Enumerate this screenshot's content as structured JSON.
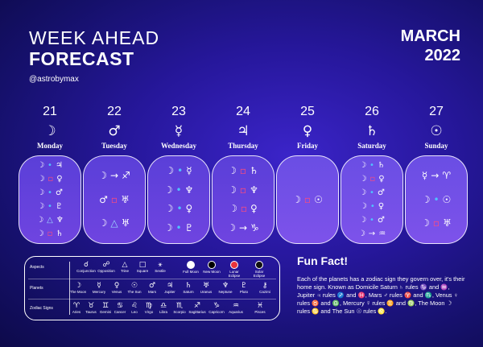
{
  "header": {
    "title_line1": "WEEK AHEAD",
    "title_line2": "FORECAST",
    "handle": "@astrobymax",
    "month": "MARCH",
    "year": "2022"
  },
  "days": [
    {
      "num": "21",
      "symbol": "☽",
      "name": "Monday",
      "style": "normal",
      "rows": [
        [
          "☽",
          "•",
          "♃"
        ],
        [
          "☽",
          "▫",
          "♀"
        ],
        [
          "☽",
          "•",
          "♂"
        ],
        [
          "☽",
          "•",
          "♇"
        ],
        [
          "☽",
          "△",
          "♆"
        ],
        [
          "☽",
          "▫",
          "♄"
        ]
      ]
    },
    {
      "num": "22",
      "symbol": "♂",
      "name": "Tuesday",
      "style": "normal",
      "rows": [
        [
          "☽",
          "→",
          "♐"
        ],
        [
          "♂",
          "▫",
          "♅"
        ],
        [
          "☽",
          "△",
          "♅"
        ]
      ]
    },
    {
      "num": "23",
      "symbol": "☿",
      "name": "Wednesday",
      "style": "normal",
      "rows": [
        [
          "☽",
          "•",
          "☿"
        ],
        [
          "☽",
          "•",
          "♆"
        ],
        [
          "☽",
          "•",
          "♀"
        ],
        [
          "☽",
          "•",
          "♇"
        ]
      ]
    },
    {
      "num": "24",
      "symbol": "♃",
      "name": "Thursday",
      "style": "normal",
      "rows": [
        [
          "☽",
          "▫",
          "♄"
        ],
        [
          "☽",
          "▫",
          "♆"
        ],
        [
          "☽",
          "▫",
          "♀"
        ],
        [
          "☽",
          "→",
          "♑"
        ]
      ]
    },
    {
      "num": "25",
      "symbol": "♀",
      "name": "Friday",
      "style": "light",
      "rows": [
        [
          "☽",
          "▫",
          "☉"
        ]
      ]
    },
    {
      "num": "26",
      "symbol": "♄",
      "name": "Saturday",
      "style": "light",
      "rows": [
        [
          "☽",
          "•",
          "♄"
        ],
        [
          "☽",
          "▫",
          "♀"
        ],
        [
          "☽",
          "•",
          "♂"
        ],
        [
          "☽",
          "•",
          "♀"
        ],
        [
          "☽",
          "•",
          "♂"
        ],
        [
          "☽",
          "→",
          "♒"
        ]
      ]
    },
    {
      "num": "27",
      "symbol": "☉",
      "name": "Sunday",
      "style": "light",
      "rows": [
        [
          "☿",
          "→",
          "♈"
        ],
        [
          "☽",
          "•",
          "☉"
        ],
        [
          "☽",
          "▫",
          "♅"
        ]
      ]
    }
  ],
  "legend": {
    "row_labels": [
      "Aspects",
      "Planets",
      "Zodiac Signs"
    ],
    "aspects": [
      {
        "sym": "☌",
        "label": "Conjunction"
      },
      {
        "sym": "☍",
        "label": "Opposition"
      },
      {
        "sym": "△",
        "label": "Trine"
      },
      {
        "sym": "□",
        "label": "Square"
      },
      {
        "sym": "⚹",
        "label": "Sextile"
      }
    ],
    "eclipses": [
      {
        "label": "Full Moon",
        "color": "#ffffff"
      },
      {
        "label": "New Moon",
        "color": "#000000"
      },
      {
        "label": "Lunar Eclipse",
        "color": "#e8343c"
      },
      {
        "label": "Solar Eclipse",
        "color": "#111111"
      }
    ],
    "planets": [
      {
        "sym": "☽",
        "label": "The Moon"
      },
      {
        "sym": "☿",
        "label": "Mercury"
      },
      {
        "sym": "♀",
        "label": "Venus"
      },
      {
        "sym": "☉",
        "label": "The Sun"
      },
      {
        "sym": "♂",
        "label": "Mars"
      },
      {
        "sym": "♃",
        "label": "Jupiter"
      },
      {
        "sym": "♄",
        "label": "Saturn"
      },
      {
        "sym": "♅",
        "label": "Uranus"
      },
      {
        "sym": "♆",
        "label": "Neptune"
      },
      {
        "sym": "♇",
        "label": "Pluto"
      },
      {
        "sym": "⚷",
        "label": "Cazimi"
      }
    ],
    "signs": [
      {
        "sym": "♈",
        "label": "Aries"
      },
      {
        "sym": "♉",
        "label": "Taurus"
      },
      {
        "sym": "♊",
        "label": "Gemini"
      },
      {
        "sym": "♋",
        "label": "Cancer"
      },
      {
        "sym": "♌",
        "label": "Leo"
      },
      {
        "sym": "♍",
        "label": "Virgo"
      },
      {
        "sym": "♎",
        "label": "Libra"
      },
      {
        "sym": "♏",
        "label": "Scorpio"
      },
      {
        "sym": "♐",
        "label": "Sagittarius"
      },
      {
        "sym": "♑",
        "label": "Capricorn"
      },
      {
        "sym": "♒",
        "label": "Aquarius"
      },
      {
        "sym": "♓",
        "label": "Pisces"
      }
    ]
  },
  "funfact": {
    "title": "Fun Fact!",
    "text": "Each of the planets has a zodiac sign they govern over, it's their home sign. Known as Domicile Saturn ♄ rules ♑ and ♒, Jupiter ♃ rules ♐ and ♓, Mars ♂ rules ♈ and ♏, Venus ♀ rules ♉ and ♎, Mercury ☿ rules ♊ and ♍, The Moon ☽ rules ♋ and The Sun ☉ rules ♌."
  }
}
